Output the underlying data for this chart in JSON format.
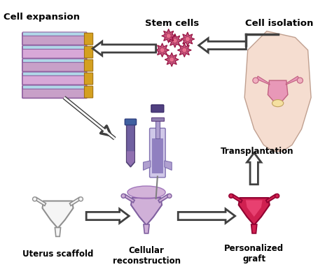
{
  "title": "",
  "background_color": "#ffffff",
  "labels": {
    "cell_expansion": "Cell expansion",
    "stem_cells": "Stem cells",
    "cell_isolation": "Cell isolation",
    "transplantation": "Transplantation",
    "uterus_scaffold": "Uterus scaffold",
    "cellular_reconstruction": "Cellular\nreconstruction",
    "personalized_graft": "Personalized\ngraft"
  },
  "colors": {
    "purple_light": "#c8a0c8",
    "purple_dark": "#9060a0",
    "pink": "#e87090",
    "pink_light": "#f0b0c0",
    "gold": "#d4a020",
    "blue_light": "#b0d8e8",
    "stem_cell_color": "#c04070",
    "arrow_fill": "#ffffff",
    "arrow_edge": "#404040",
    "body_color": "#f5ddd0",
    "organ_pink": "#e06080",
    "text_color": "#000000",
    "gray_light": "#d0d0d0",
    "gray_med": "#a0a0a0",
    "uterus_outline": "#808080"
  },
  "figsize": [
    4.74,
    3.92
  ],
  "dpi": 100
}
